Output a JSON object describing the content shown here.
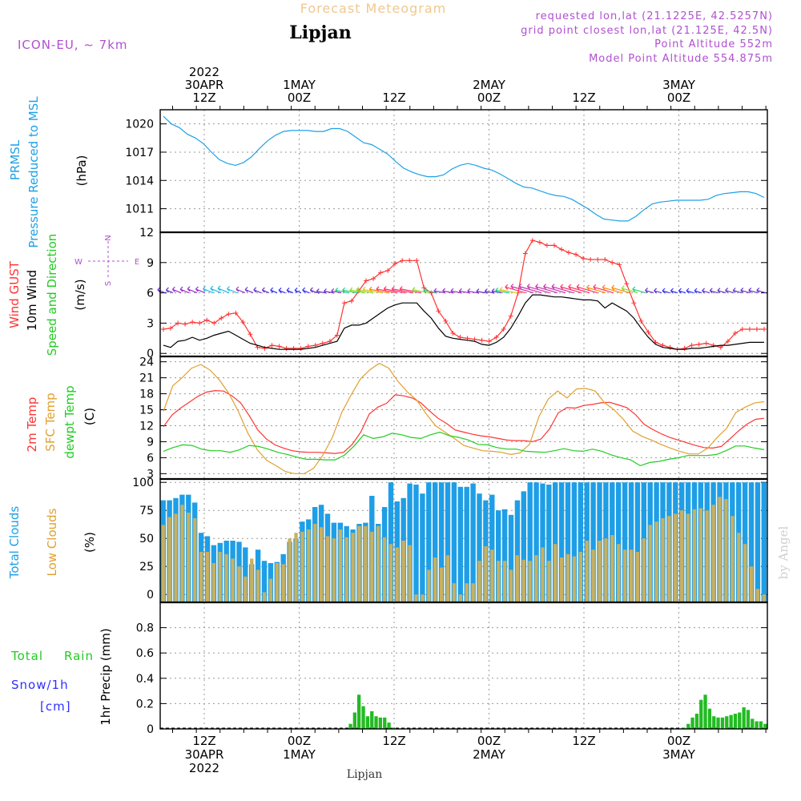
{
  "header": {
    "product": "Forecast Meteogram",
    "station": "Lipjan",
    "model": "ICON-EU, ~ 7km",
    "requested": "requested lon,lat (21.1225E, 42.5257N)",
    "grid_point": "grid point closest lon,lat (21.125E, 42.5N)",
    "point_altitude": "Point Altitude 552m",
    "model_point_altitude": "Model Point Altitude 554.875m",
    "footer_station": "Lipjan",
    "watermark": "by Angel"
  },
  "colors": {
    "pressure": "#1ea0e6",
    "gust": "#ff3333",
    "wind": "#000000",
    "t2m": "#ff3333",
    "sfc": "#e0a030",
    "dewpt": "#22cc22",
    "total_clouds": "#1e9ee6",
    "low_clouds": "#c8b060",
    "precip": "#22bb22",
    "label_purple": "#b050d0",
    "label_blue": "#3030ff"
  },
  "chart_data": [
    {
      "type": "line",
      "panel": "pressure",
      "label_lines": [
        "PRMSL",
        "Pressure Reduced to MSL"
      ],
      "unit": "(hPa)",
      "ylim": [
        1008.5,
        1021.5
      ],
      "yticks": [
        1011,
        1014,
        1017,
        1020
      ],
      "x_hours": [
        0,
        1,
        2,
        3,
        4,
        5,
        6,
        7,
        8,
        9,
        10,
        11,
        12,
        13,
        14,
        15,
        16,
        17,
        18,
        19,
        20,
        21,
        22,
        23,
        24,
        25,
        26,
        27,
        28,
        29,
        30,
        31,
        32,
        33,
        34,
        35,
        36,
        37,
        38,
        39,
        40,
        41,
        42,
        43,
        44,
        45,
        46,
        47,
        48,
        49,
        50,
        51,
        52,
        53,
        54,
        55,
        56,
        57,
        58,
        59,
        60,
        61,
        62,
        63,
        64,
        65,
        66,
        67,
        68,
        69,
        70,
        71,
        72,
        73,
        74,
        75
      ],
      "series": [
        {
          "values": [
            1020.8,
            1020.0,
            1019.6,
            1018.9,
            1018.5,
            1017.9,
            1017.0,
            1016.2,
            1015.8,
            1015.6,
            1015.9,
            1016.5,
            1017.4,
            1018.2,
            1018.8,
            1019.2,
            1019.3,
            1019.3,
            1019.3,
            1019.2,
            1019.2,
            1019.5,
            1019.5,
            1019.2,
            1018.6,
            1018.0,
            1017.8,
            1017.3,
            1016.8,
            1016.0,
            1015.3,
            1014.9,
            1014.6,
            1014.4,
            1014.4,
            1014.6,
            1015.2,
            1015.6,
            1015.8,
            1015.6,
            1015.3,
            1015.1,
            1014.7,
            1014.2,
            1013.7,
            1013.3,
            1013.2,
            1012.9,
            1012.6,
            1012.4,
            1012.3,
            1012.0,
            1011.5,
            1011.0,
            1010.4,
            1009.9,
            1009.8,
            1009.7,
            1009.7,
            1010.2,
            1010.9,
            1011.5,
            1011.7,
            1011.8,
            1011.9,
            1011.9,
            1011.9,
            1011.9,
            1012.0,
            1012.4,
            1012.6,
            1012.7,
            1012.8,
            1012.8,
            1012.6,
            1012.2
          ]
        }
      ]
    },
    {
      "type": "line",
      "panel": "wind",
      "label_lines": [
        "Wind GUST",
        "10m Wind",
        "Speed and Direction"
      ],
      "unit": "(m/s)",
      "compass": {
        "n": "N",
        "s": "S",
        "w": "W",
        "e": "E"
      },
      "ylim": [
        -0.3,
        12
      ],
      "yticks": [
        0,
        3,
        6,
        9,
        12
      ],
      "series": [
        {
          "name": "Wind GUST",
          "values": [
            2.4,
            2.5,
            3.0,
            2.9,
            3.1,
            3.0,
            3.3,
            3.0,
            3.5,
            3.9,
            4.0,
            3.1,
            1.9,
            0.6,
            0.5,
            0.8,
            0.7,
            0.5,
            0.5,
            0.5,
            0.7,
            0.8,
            1.0,
            1.2,
            1.8,
            5.0,
            5.2,
            6.2,
            7.2,
            7.4,
            8.0,
            8.2,
            8.9,
            9.2,
            9.2,
            9.2,
            6.5,
            6.0,
            4.2,
            3.2,
            2.0,
            1.6,
            1.5,
            1.4,
            1.3,
            1.2,
            1.6,
            2.4,
            3.7,
            6.0,
            9.9,
            11.2,
            11.0,
            10.7,
            10.7,
            10.3,
            10.0,
            9.8,
            9.4,
            9.3,
            9.3,
            9.3,
            9.0,
            8.8,
            6.9,
            5.0,
            3.2,
            2.1,
            1.1,
            0.8,
            0.6,
            0.4,
            0.5,
            0.8,
            0.9,
            1.0,
            0.8,
            0.6,
            1.2,
            2.0,
            2.4,
            2.4,
            2.4,
            2.4
          ]
        },
        {
          "name": "10m Wind",
          "values": [
            0.8,
            0.6,
            1.2,
            1.3,
            1.6,
            1.3,
            1.5,
            1.8,
            2.0,
            2.2,
            1.8,
            1.4,
            1.0,
            0.8,
            0.6,
            0.5,
            0.4,
            0.4,
            0.4,
            0.4,
            0.5,
            0.6,
            0.8,
            1.0,
            1.2,
            2.5,
            2.8,
            2.8,
            3.0,
            3.5,
            4.0,
            4.5,
            4.8,
            5.0,
            5.0,
            5.0,
            4.2,
            3.5,
            2.5,
            1.7,
            1.5,
            1.4,
            1.3,
            1.2,
            0.9,
            0.8,
            1.1,
            1.6,
            2.5,
            3.7,
            5.0,
            5.8,
            5.8,
            5.7,
            5.6,
            5.6,
            5.5,
            5.4,
            5.3,
            5.3,
            5.2,
            4.5,
            5.0,
            4.6,
            4.2,
            3.5,
            2.5,
            1.6,
            0.9,
            0.6,
            0.5,
            0.4,
            0.4,
            0.5,
            0.5,
            0.6,
            0.7,
            0.8,
            0.8,
            0.9,
            1.0,
            1.1,
            1.1,
            1.1
          ]
        }
      ]
    },
    {
      "type": "line",
      "panel": "temperature",
      "label_lines": [
        "2m Temp",
        "SFC Temp",
        "dewpt Temp"
      ],
      "unit": "(C)",
      "ylim": [
        2,
        25
      ],
      "yticks": [
        3,
        6,
        9,
        12,
        15,
        18,
        21,
        24
      ],
      "series": [
        {
          "name": "2m Temp",
          "values": [
            11.8,
            14.0,
            15.3,
            16.4,
            17.5,
            18.3,
            18.6,
            18.5,
            17.6,
            16.3,
            13.9,
            11.2,
            9.5,
            8.4,
            7.8,
            7.3,
            7.1,
            7.0,
            7.0,
            6.9,
            6.8,
            7.0,
            8.5,
            10.8,
            14.2,
            15.5,
            16.2,
            17.8,
            17.6,
            17.2,
            16.3,
            14.8,
            13.4,
            12.4,
            11.2,
            10.8,
            10.4,
            10.1,
            9.9,
            9.6,
            9.3,
            9.2,
            9.2,
            9.0,
            9.5,
            11.4,
            14.4,
            15.4,
            15.3,
            15.8,
            16.0,
            16.3,
            16.4,
            15.9,
            15.4,
            14.1,
            12.3,
            11.3,
            10.5,
            9.8,
            9.3,
            8.8,
            8.3,
            7.9,
            7.8,
            8.1,
            9.5,
            11.0,
            12.3,
            13.2,
            13.4
          ]
        },
        {
          "name": "SFC Temp",
          "values": [
            14.7,
            19.5,
            21.0,
            22.8,
            23.5,
            22.4,
            20.5,
            18.0,
            14.6,
            10.6,
            7.5,
            5.5,
            4.5,
            3.4,
            3.0,
            3.0,
            4.0,
            6.5,
            9.8,
            14.5,
            17.8,
            20.8,
            22.5,
            23.7,
            22.8,
            20.3,
            18.3,
            16.8,
            14.2,
            12.0,
            10.8,
            9.6,
            8.3,
            7.8,
            7.3,
            7.2,
            7.0,
            6.6,
            6.9,
            8.5,
            13.7,
            17.0,
            18.5,
            17.2,
            18.9,
            19.0,
            18.5,
            16.3,
            15.0,
            13.2,
            11.0,
            10.0,
            9.3,
            8.5,
            7.8,
            7.2,
            6.7,
            6.7,
            7.8,
            9.8,
            11.5,
            14.5,
            15.5,
            16.3,
            16.5
          ]
        },
        {
          "name": "dewpt Temp",
          "values": [
            7.2,
            7.9,
            8.4,
            8.3,
            7.6,
            7.3,
            7.3,
            7.0,
            7.5,
            8.3,
            8.1,
            7.6,
            7.0,
            6.6,
            6.1,
            5.7,
            5.7,
            5.6,
            5.6,
            6.5,
            8.2,
            10.3,
            9.6,
            9.9,
            10.6,
            10.3,
            9.8,
            9.6,
            10.3,
            10.8,
            10.1,
            9.8,
            9.3,
            8.5,
            8.4,
            7.9,
            7.6,
            7.6,
            7.2,
            7.1,
            7.0,
            7.3,
            7.7,
            7.3,
            7.2,
            7.6,
            7.2,
            6.5,
            6.0,
            5.6,
            4.5,
            5.1,
            5.3,
            5.7,
            6.0,
            6.4,
            6.4,
            6.4,
            6.6,
            7.3,
            8.2,
            8.2,
            7.8,
            7.5
          ]
        }
      ]
    },
    {
      "type": "bar",
      "panel": "clouds",
      "label_lines": [
        "Total Clouds",
        "Low Clouds"
      ],
      "unit": "(%)",
      "ylim": [
        -7,
        103
      ],
      "yticks": [
        0,
        25,
        50,
        75,
        100
      ],
      "series": [
        {
          "name": "Total Clouds",
          "values": [
            84,
            84,
            86,
            89,
            89,
            82,
            55,
            52,
            44,
            46,
            48,
            48,
            47,
            42,
            27,
            40,
            30,
            28,
            29,
            36,
            47,
            50,
            65,
            67,
            78,
            80,
            72,
            64,
            64,
            61,
            58,
            63,
            64,
            88,
            63,
            78,
            100,
            83,
            86,
            99,
            98,
            90,
            100,
            100,
            100,
            100,
            100,
            96,
            96,
            99,
            90,
            84,
            89,
            75,
            76,
            71,
            84,
            92,
            100,
            100,
            99,
            98,
            100,
            100,
            100,
            100,
            100,
            100,
            100,
            100,
            100,
            100,
            100,
            100,
            100,
            100,
            100,
            100,
            100,
            100,
            100,
            100,
            100,
            100,
            100,
            100,
            100,
            100,
            100,
            100,
            100,
            100,
            100,
            100,
            100,
            100
          ]
        },
        {
          "name": "Low Clouds",
          "values": [
            62,
            69,
            72,
            80,
            73,
            68,
            38,
            38,
            28,
            38,
            36,
            32,
            25,
            16,
            32,
            22,
            2,
            14,
            28,
            27,
            50,
            55,
            56,
            58,
            63,
            60,
            52,
            50,
            58,
            51,
            55,
            61,
            61,
            56,
            61,
            51,
            45,
            42,
            48,
            44,
            0,
            0,
            22,
            33,
            24,
            35,
            10,
            0,
            10,
            10,
            30,
            43,
            40,
            30,
            30,
            22,
            35,
            31,
            30,
            35,
            42,
            30,
            45,
            33,
            36,
            34,
            38,
            48,
            40,
            48,
            50,
            53,
            45,
            40,
            40,
            38,
            50,
            62,
            65,
            68,
            70,
            72,
            75,
            72,
            76,
            77,
            75,
            80,
            87,
            85,
            70,
            55,
            45,
            25,
            5,
            0
          ]
        }
      ]
    },
    {
      "type": "bar",
      "panel": "precip",
      "label_lines": [
        "1hr Precip (mm)"
      ],
      "legend": {
        "total": "Total",
        "rain": "Rain",
        "snow": "Snow/1h",
        "snow_unit": "[cm]"
      },
      "ylim": [
        0,
        1
      ],
      "yticks": [
        0,
        0.2,
        0.4,
        0.6,
        0.8
      ],
      "ytick_labels": [
        "0",
        "0.2",
        "0.4",
        "0.6",
        "0.8"
      ],
      "series": [
        {
          "name": "Total",
          "values": [
            0.0,
            0.0,
            0.0,
            0.0,
            0.0,
            0.0,
            0.0,
            0.0,
            0.0,
            0.0,
            0.0,
            0.0,
            0.0,
            0.0,
            0.0,
            0.0,
            0.0,
            0.0,
            0.0,
            0.0,
            0.0,
            0.0,
            0.0,
            0.0,
            0.0,
            0.0,
            0.0,
            0.0,
            0.0,
            0.0,
            0.0,
            0.0,
            0.0,
            0.0,
            0.0,
            0.0,
            0.0,
            0.0,
            0.0,
            0.0,
            0.0,
            0.0,
            0.0,
            0.0,
            0.04,
            0.13,
            0.27,
            0.18,
            0.1,
            0.14,
            0.1,
            0.09,
            0.09,
            0.05,
            0.01,
            0.0,
            0.0,
            0.0,
            0.0,
            0.0,
            0.0,
            0.0,
            0.0,
            0.0,
            0.0,
            0.0,
            0.0,
            0.0,
            0.0,
            0.0,
            0.0,
            0.0,
            0.0,
            0.0,
            0.0,
            0.0,
            0.0,
            0.0,
            0.0,
            0.0,
            0.0,
            0.0,
            0.0,
            0.0,
            0.0,
            0.0,
            0.0,
            0.0,
            0.0,
            0.0,
            0.0,
            0.0,
            0.0,
            0.0,
            0.0,
            0.0,
            0.0,
            0.0,
            0.0,
            0.0,
            0.0,
            0.0,
            0.0,
            0.0,
            0.0,
            0.0,
            0.0,
            0.0,
            0.0,
            0.0,
            0.0,
            0.0,
            0.0,
            0.0,
            0.0,
            0.0,
            0.0,
            0.0,
            0.0,
            0.0,
            0.0,
            0.0,
            0.01,
            0.04,
            0.09,
            0.12,
            0.23,
            0.27,
            0.16,
            0.1,
            0.09,
            0.09,
            0.1,
            0.11,
            0.12,
            0.13,
            0.17,
            0.15,
            0.08,
            0.06,
            0.06,
            0.04
          ]
        }
      ]
    }
  ],
  "time_axis": {
    "top_labels": [
      {
        "lines": [
          "2022",
          "30APR",
          "12Z"
        ],
        "hour": 0
      },
      {
        "lines": [
          "1MAY",
          "00Z"
        ],
        "hour": 12
      },
      {
        "lines": [
          "12Z"
        ],
        "hour": 24
      },
      {
        "lines": [
          "2MAY",
          "00Z"
        ],
        "hour": 36
      },
      {
        "lines": [
          "12Z"
        ],
        "hour": 48
      },
      {
        "lines": [
          "3MAY",
          "00Z"
        ],
        "hour": 60
      }
    ],
    "bottom_labels": [
      {
        "lines": [
          "12Z",
          "30APR",
          "2022"
        ],
        "hour": 0
      },
      {
        "lines": [
          "00Z",
          "1MAY"
        ],
        "hour": 12
      },
      {
        "lines": [
          "12Z"
        ],
        "hour": 24
      },
      {
        "lines": [
          "00Z",
          "2MAY"
        ],
        "hour": 36
      },
      {
        "lines": [
          "12Z"
        ],
        "hour": 48
      },
      {
        "lines": [
          "00Z",
          "3MAY"
        ],
        "hour": 60
      }
    ]
  }
}
